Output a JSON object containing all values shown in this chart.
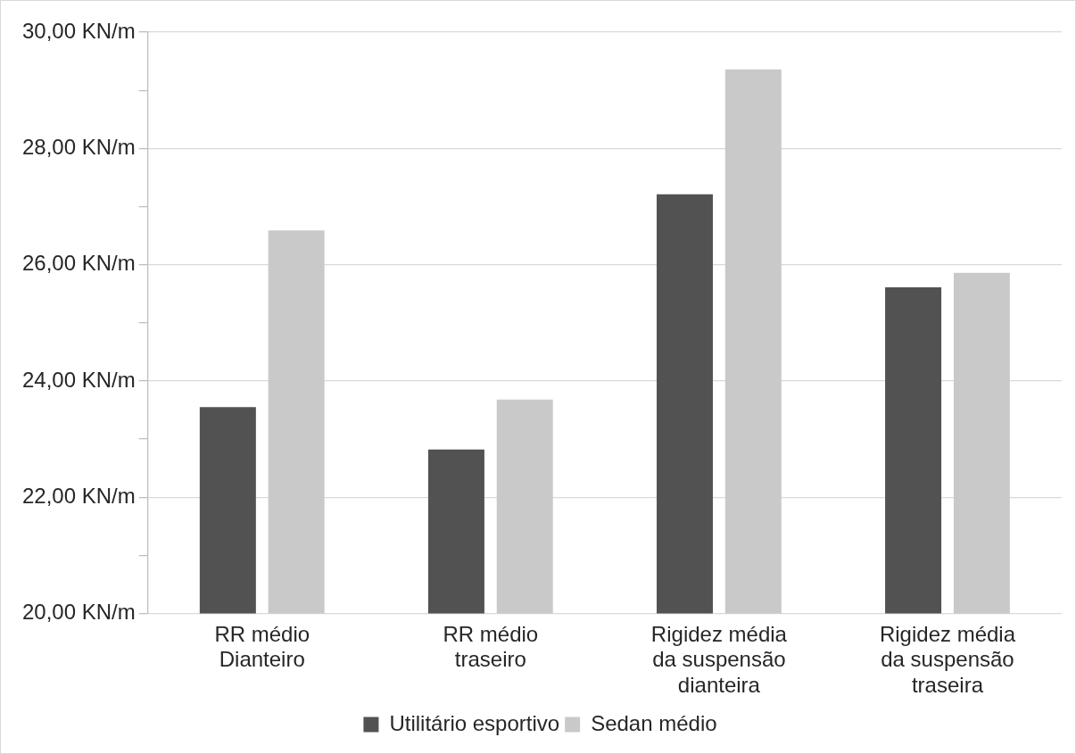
{
  "chart_data": {
    "type": "bar",
    "categories": [
      "RR médio Dianteiro",
      "RR médio traseiro",
      "Rigidez média da suspensão dianteira",
      "Rigidez média da suspensão traseira"
    ],
    "series": [
      {
        "name": "Utilitário esportivo",
        "color": "#525252",
        "values": [
          23.55,
          22.82,
          27.21,
          25.61
        ]
      },
      {
        "name": "Sedan médio",
        "color": "#c9c9c9",
        "values": [
          26.59,
          23.68,
          29.36,
          25.86
        ]
      }
    ],
    "ylim": [
      20,
      30
    ],
    "yticks": [
      {
        "value": 20,
        "label": "20,00 KN/m"
      },
      {
        "value": 21,
        "label": null
      },
      {
        "value": 22,
        "label": "22,00 KN/m"
      },
      {
        "value": 23,
        "label": null
      },
      {
        "value": 24,
        "label": "24,00 KN/m"
      },
      {
        "value": 25,
        "label": null
      },
      {
        "value": 26,
        "label": "26,00 KN/m"
      },
      {
        "value": 27,
        "label": null
      },
      {
        "value": 28,
        "label": "28,00 KN/m"
      },
      {
        "value": 29,
        "label": null
      },
      {
        "value": 30,
        "label": "30,00 KN/m"
      }
    ],
    "grid": "y",
    "legend": "bottom"
  }
}
